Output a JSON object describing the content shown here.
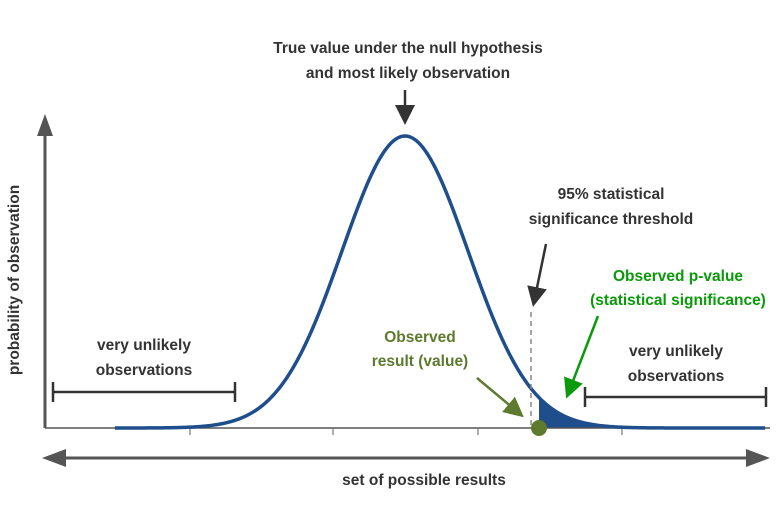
{
  "labels": {
    "peak_line1": "True value under the null hypothesis",
    "peak_line2": "and most likely observation",
    "threshold_line1": "95% statistical",
    "threshold_line2": "significance threshold",
    "pvalue_line1": "Observed p-value",
    "pvalue_line2": "(statistical significance)",
    "observed_line1": "Observed",
    "observed_line2": "result (value)",
    "left_tail_line1": "very unlikely",
    "left_tail_line2": "observations",
    "right_tail_line1": "very unlikely",
    "right_tail_line2": "observations",
    "y_axis": "probability of observation",
    "x_axis": "set of possible results"
  },
  "colors": {
    "curve": "#1f4e8c",
    "shaded_tail": "#1f4e8c",
    "observed_point": "#5d7a2e",
    "pvalue_text": "#0a9a0a",
    "observed_text": "#5d7a2e",
    "text": "#333333",
    "axis": "#555555"
  },
  "icons": {
    "observed_point": "filled-circle",
    "axis_arrows": "triangle-arrowheads"
  }
}
